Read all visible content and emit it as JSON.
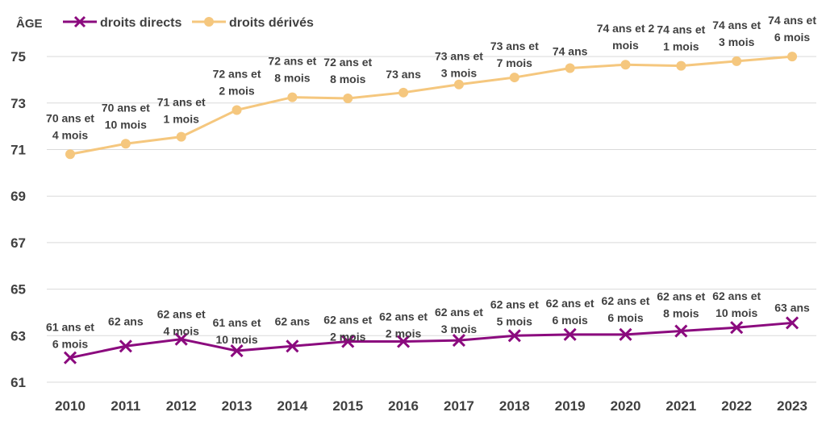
{
  "chart_data": {
    "type": "line",
    "ylabel": "ÂGE",
    "ylim": [
      61,
      76
    ],
    "yticks": [
      61,
      63,
      65,
      67,
      69,
      71,
      73,
      75
    ],
    "grid": true,
    "legend_position": "top-left",
    "x": [
      "2010",
      "2011",
      "2012",
      "2013",
      "2014",
      "2015",
      "2016",
      "2017",
      "2018",
      "2019",
      "2020",
      "2021",
      "2022",
      "2023"
    ],
    "series": [
      {
        "name": "droits directs",
        "color": "#8B0A7E",
        "marker": "x",
        "values": [
          62.05,
          62.55,
          62.85,
          62.35,
          62.55,
          62.75,
          62.75,
          62.8,
          63.0,
          63.05,
          63.05,
          63.2,
          63.35,
          63.55
        ],
        "labels": [
          [
            "61 ans et",
            "6 mois"
          ],
          [
            "62 ans"
          ],
          [
            "62 ans et",
            "4 mois"
          ],
          [
            "61 ans et",
            "10 mois"
          ],
          [
            "62 ans"
          ],
          [
            "62 ans et",
            "2 mois"
          ],
          [
            "62 ans et",
            "2 mois"
          ],
          [
            "62 ans et",
            "3 mois"
          ],
          [
            "62 ans et",
            "5 mois"
          ],
          [
            "62 ans et",
            "6 mois"
          ],
          [
            "62 ans et",
            "6 mois"
          ],
          [
            "62 ans et",
            "8 mois"
          ],
          [
            "62 ans et",
            "10 mois"
          ],
          [
            "63 ans"
          ]
        ]
      },
      {
        "name": "droits dérivés",
        "color": "#F5C77E",
        "marker": "circle",
        "values": [
          70.8,
          71.25,
          71.55,
          72.7,
          73.25,
          73.2,
          73.45,
          73.8,
          74.1,
          74.5,
          74.65,
          74.6,
          74.8,
          75.0
        ],
        "labels": [
          [
            "70 ans et",
            "4 mois"
          ],
          [
            "70 ans et",
            "10 mois"
          ],
          [
            "71 ans et",
            "1 mois"
          ],
          [
            "72 ans et",
            "2 mois"
          ],
          [
            "72 ans et",
            "8 mois"
          ],
          [
            "72 ans et",
            "8 mois"
          ],
          [
            "73 ans"
          ],
          [
            "73 ans et",
            "3 mois"
          ],
          [
            "73 ans et",
            "7 mois"
          ],
          [
            "74 ans"
          ],
          [
            "74 ans et 2",
            "mois"
          ],
          [
            "74 ans et",
            "1 mois"
          ],
          [
            "74 ans et",
            "3 mois"
          ],
          [
            "74 ans et",
            "6 mois"
          ]
        ]
      }
    ]
  }
}
